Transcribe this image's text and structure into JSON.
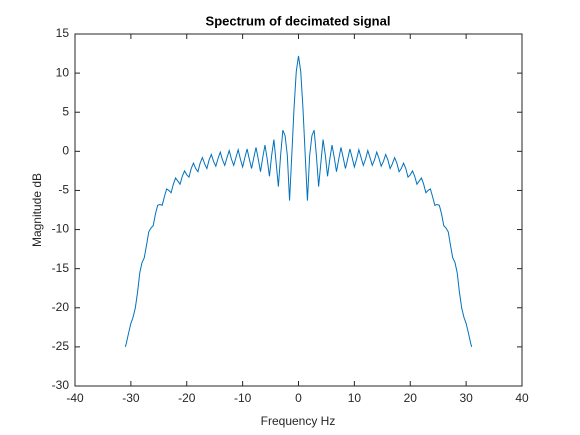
{
  "chart_data": {
    "type": "line",
    "title": "Spectrum of decimated signal",
    "x_label": "Frequency Hz",
    "y_label": "Magnitude dB",
    "xlim": [
      -40,
      40
    ],
    "ylim": [
      -30,
      15
    ],
    "xticks": [
      -40,
      -30,
      -20,
      -10,
      0,
      10,
      20,
      30,
      40
    ],
    "yticks": [
      -30,
      -25,
      -20,
      -15,
      -10,
      -5,
      0,
      5,
      10,
      15
    ],
    "grid": false,
    "x": [
      -31.0,
      -30.8,
      -30.4,
      -30.0,
      -29.6,
      -29.2,
      -28.8,
      -28.4,
      -28.0,
      -27.6,
      -27.2,
      -26.8,
      -26.4,
      -26.0,
      -25.6,
      -25.2,
      -24.8,
      -24.4,
      -24.0,
      -23.6,
      -23.2,
      -22.8,
      -22.4,
      -22.0,
      -21.6,
      -21.2,
      -20.8,
      -20.4,
      -20.0,
      -19.6,
      -19.2,
      -18.8,
      -18.4,
      -18.0,
      -17.6,
      -17.2,
      -16.8,
      -16.4,
      -16.0,
      -15.6,
      -15.2,
      -14.8,
      -14.4,
      -14.0,
      -13.6,
      -13.2,
      -12.8,
      -12.4,
      -12.0,
      -11.6,
      -11.2,
      -10.8,
      -10.4,
      -10.0,
      -9.6,
      -9.2,
      -8.8,
      -8.4,
      -8.0,
      -7.6,
      -7.2,
      -6.8,
      -6.4,
      -6.0,
      -5.6,
      -5.2,
      -4.8,
      -4.4,
      -4.0,
      -3.6,
      -3.2,
      -2.8,
      -2.4,
      -2.0,
      -1.6,
      -1.2,
      -0.8,
      -0.4,
      0,
      0.4,
      0.8,
      1.2,
      1.6,
      2.0,
      2.4,
      2.8,
      3.2,
      3.6,
      4.0,
      4.4,
      4.8,
      5.2,
      5.6,
      6.0,
      6.4,
      6.8,
      7.2,
      7.6,
      8.0,
      8.4,
      8.8,
      9.2,
      9.6,
      10.0,
      10.4,
      10.8,
      11.2,
      11.6,
      12.0,
      12.4,
      12.8,
      13.2,
      13.6,
      14.0,
      14.4,
      14.8,
      15.2,
      15.6,
      16.0,
      16.4,
      16.8,
      17.2,
      17.6,
      18.0,
      18.4,
      18.8,
      19.2,
      19.6,
      20.0,
      20.4,
      20.8,
      21.2,
      21.6,
      22.0,
      22.4,
      22.8,
      23.2,
      23.6,
      24.0,
      24.4,
      24.8,
      25.2,
      25.6,
      26.0,
      26.4,
      26.8,
      27.2,
      27.6,
      28.0,
      28.4,
      28.8,
      29.2,
      29.6,
      30.0,
      30.4,
      30.8,
      31.0
    ],
    "series": [
      {
        "name": "spectrum",
        "color": "#0072bd",
        "values": [
          -25.0,
          -24.5,
          -23.2,
          -22.0,
          -21.2,
          -20.0,
          -18.0,
          -15.5,
          -14.2,
          -13.6,
          -12.0,
          -10.3,
          -9.8,
          -9.5,
          -8.0,
          -6.9,
          -6.8,
          -6.9,
          -5.8,
          -4.8,
          -5.0,
          -5.3,
          -4.2,
          -3.4,
          -3.8,
          -4.2,
          -3.2,
          -2.5,
          -3.0,
          -3.3,
          -2.2,
          -1.5,
          -2.2,
          -2.6,
          -1.5,
          -0.8,
          -1.6,
          -2.2,
          -1.1,
          -0.4,
          -1.3,
          -1.9,
          -0.9,
          -0.1,
          -1.1,
          -1.8,
          -0.8,
          0.1,
          -1.0,
          -1.8,
          -0.8,
          0.2,
          -1.0,
          -2.0,
          -0.8,
          0.3,
          -1.0,
          -2.2,
          -0.8,
          0.5,
          -1.0,
          -2.6,
          -0.8,
          0.8,
          -1.0,
          -3.2,
          -0.5,
          1.5,
          -1.5,
          -4.5,
          -0.5,
          2.7,
          2.0,
          -0.5,
          -6.3,
          -0.5,
          5.5,
          10.2,
          12.2,
          10.2,
          5.5,
          -0.5,
          -6.3,
          -0.5,
          2.0,
          2.7,
          -0.5,
          -4.5,
          -1.5,
          1.5,
          -0.5,
          -3.2,
          -1.0,
          0.8,
          -0.8,
          -2.6,
          -1.0,
          0.5,
          -0.8,
          -2.2,
          -1.0,
          0.3,
          -0.8,
          -2.0,
          -1.0,
          0.2,
          -0.8,
          -1.8,
          -1.0,
          0.1,
          -0.8,
          -1.8,
          -1.1,
          -0.1,
          -0.9,
          -1.9,
          -1.3,
          -0.4,
          -1.1,
          -2.2,
          -1.6,
          -0.8,
          -1.5,
          -2.6,
          -2.2,
          -1.5,
          -2.2,
          -3.3,
          -3.0,
          -2.5,
          -3.2,
          -4.2,
          -3.8,
          -3.4,
          -4.2,
          -5.3,
          -5.0,
          -4.8,
          -5.8,
          -6.9,
          -6.8,
          -6.9,
          -8.0,
          -9.5,
          -9.8,
          -10.3,
          -12.0,
          -13.6,
          -14.2,
          -15.5,
          -18.0,
          -20.0,
          -21.2,
          -22.0,
          -23.2,
          -24.5,
          -25.0
        ]
      }
    ]
  }
}
